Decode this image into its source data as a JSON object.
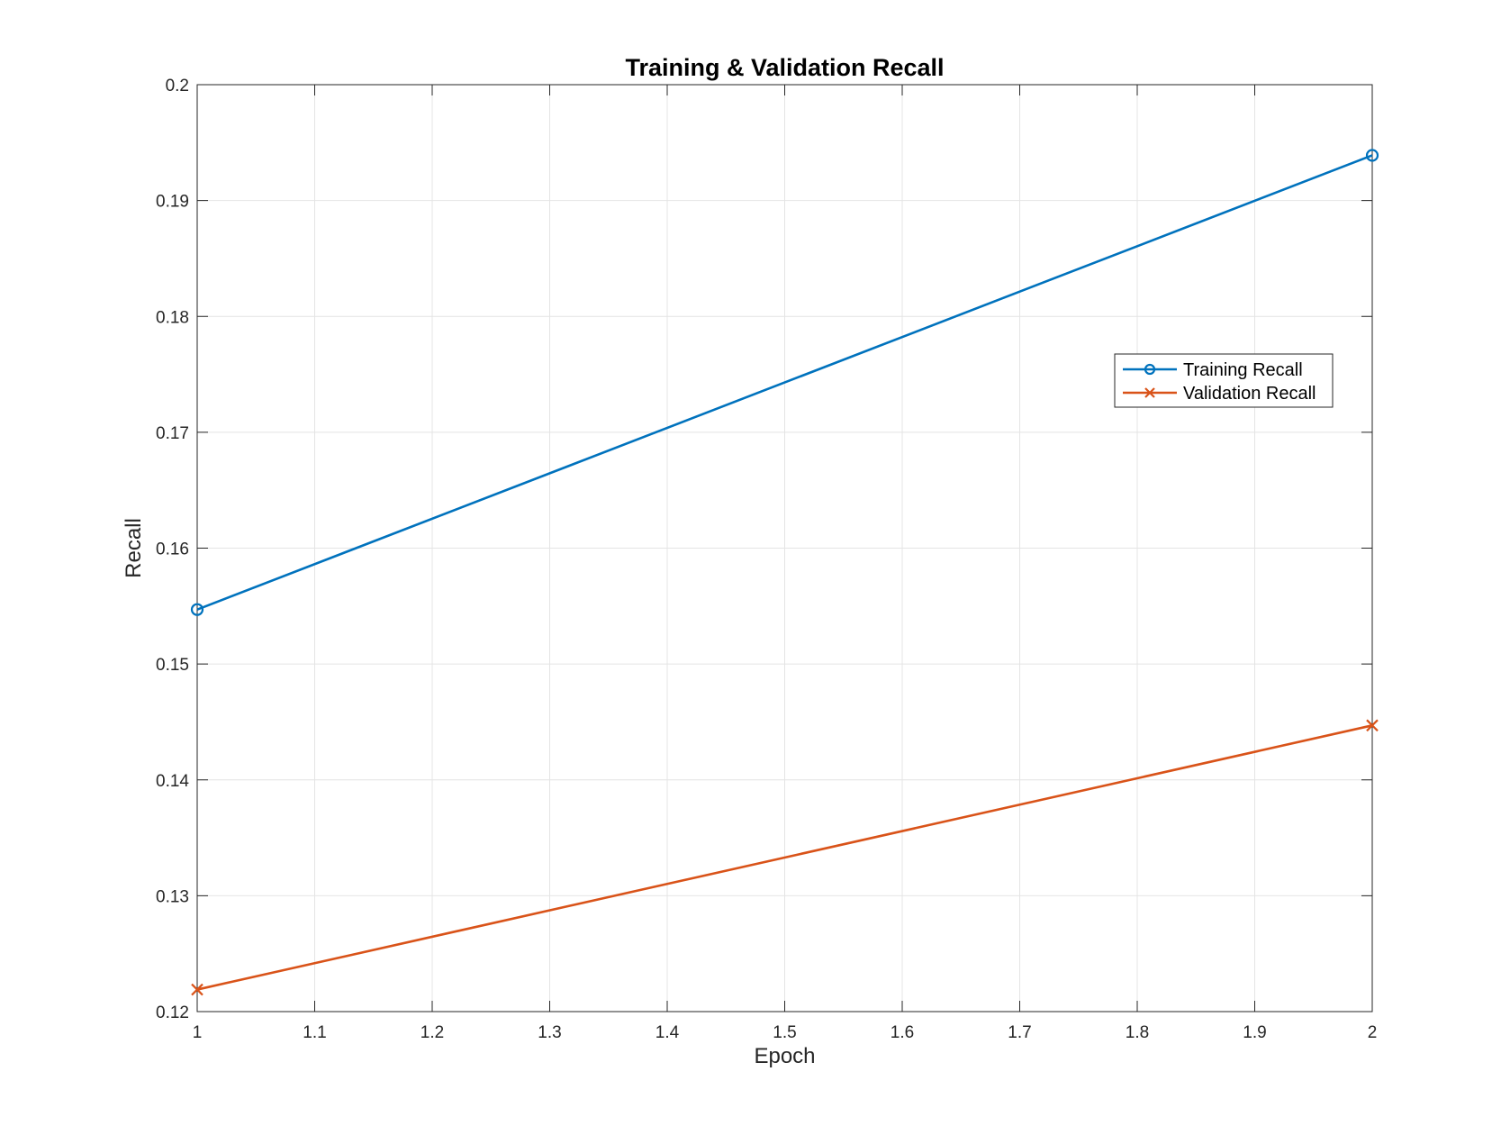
{
  "chart_data": {
    "type": "line",
    "title": "Training & Validation Recall",
    "xlabel": "Epoch",
    "ylabel": "Recall",
    "xlim": [
      1,
      2
    ],
    "ylim": [
      0.12,
      0.2
    ],
    "xticks": [
      "1",
      "1.1",
      "1.2",
      "1.3",
      "1.4",
      "1.5",
      "1.6",
      "1.7",
      "1.8",
      "1.9",
      "2"
    ],
    "yticks": [
      "0.12",
      "0.13",
      "0.14",
      "0.15",
      "0.16",
      "0.17",
      "0.18",
      "0.19",
      "0.2"
    ],
    "grid": true,
    "legend_position": "upper-right",
    "series": [
      {
        "name": "Training Recall",
        "color": "#0072BD",
        "marker": "circle",
        "x": [
          1,
          2
        ],
        "y": [
          0.1547,
          0.1939
        ]
      },
      {
        "name": "Validation Recall",
        "color": "#D95319",
        "marker": "cross",
        "x": [
          1,
          2
        ],
        "y": [
          0.1219,
          0.1447
        ]
      }
    ]
  }
}
